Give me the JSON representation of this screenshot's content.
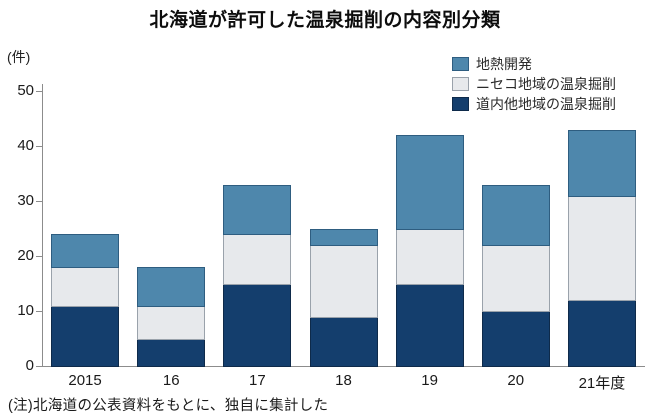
{
  "title": "北海道が許可した温泉掘削の内容別分類",
  "note": "(注)北海道の公表資料をもとに、独自に集計した",
  "chart_data": {
    "type": "bar",
    "subtype": "stacked",
    "title": "北海道が許可した温泉掘削の内容別分類",
    "y_unit_label": "(件)",
    "xlabel": "",
    "ylabel": "件",
    "ylim": [
      0,
      50
    ],
    "ytick_interval": 10,
    "ytick_labels": [
      "0",
      "10",
      "20",
      "30",
      "40",
      "50"
    ],
    "grid": false,
    "legend_position": "top-right",
    "categories": [
      "2015",
      "16",
      "17",
      "18",
      "19",
      "20",
      "21年度"
    ],
    "series": [
      {
        "name": "道内他地域の温泉掘削",
        "color": "#143e6d",
        "border_color": "#0e2a4a",
        "values": [
          11,
          5,
          15,
          9,
          15,
          10,
          12
        ]
      },
      {
        "name": "ニセコ地域の温泉掘削",
        "color": "#e7e9ec",
        "border_color": "#9aa2ab",
        "values": [
          7,
          6,
          9,
          13,
          10,
          12,
          19
        ]
      },
      {
        "name": "地熱開発",
        "color": "#4e87ac",
        "border_color": "#2e5d80",
        "values": [
          6,
          7,
          9,
          3,
          17,
          11,
          12
        ]
      }
    ],
    "stack_totals": [
      24,
      18,
      33,
      25,
      42,
      33,
      43
    ],
    "legend_order_top_to_bottom": [
      "地熱開発",
      "ニセコ地域の温泉掘削",
      "道内他地域の温泉掘削"
    ]
  },
  "colors": {
    "background": "#ffffff",
    "axis": "#8c8c8c",
    "text": "#1a1a1a"
  }
}
